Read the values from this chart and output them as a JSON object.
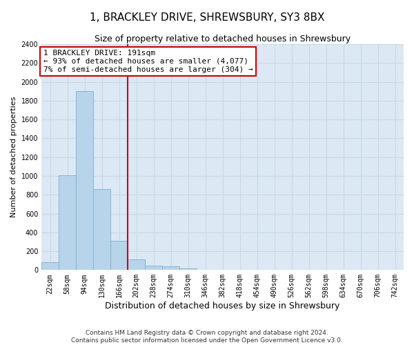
{
  "title": "1, BRACKLEY DRIVE, SHREWSBURY, SY3 8BX",
  "subtitle": "Size of property relative to detached houses in Shrewsbury",
  "xlabel": "Distribution of detached houses by size in Shrewsbury",
  "ylabel": "Number of detached properties",
  "footer_line1": "Contains HM Land Registry data © Crown copyright and database right 2024.",
  "footer_line2": "Contains public sector information licensed under the Open Government Licence v3.0.",
  "bar_labels": [
    "22sqm",
    "58sqm",
    "94sqm",
    "130sqm",
    "166sqm",
    "202sqm",
    "238sqm",
    "274sqm",
    "310sqm",
    "346sqm",
    "382sqm",
    "418sqm",
    "454sqm",
    "490sqm",
    "526sqm",
    "562sqm",
    "598sqm",
    "634sqm",
    "670sqm",
    "706sqm",
    "742sqm"
  ],
  "bar_values": [
    80,
    1010,
    1900,
    860,
    310,
    110,
    50,
    40,
    20,
    5,
    5,
    0,
    0,
    0,
    0,
    0,
    0,
    0,
    0,
    0,
    0
  ],
  "bar_color": "#b8d4ea",
  "bar_edge_color": "#7aafd4",
  "vline_color": "#cc0000",
  "ylim": [
    0,
    2400
  ],
  "yticks": [
    0,
    200,
    400,
    600,
    800,
    1000,
    1200,
    1400,
    1600,
    1800,
    2000,
    2200,
    2400
  ],
  "annotation_text": "1 BRACKLEY DRIVE: 191sqm\n← 93% of detached houses are smaller (4,077)\n7% of semi-detached houses are larger (304) →",
  "annotation_box_color": "#ffffff",
  "annotation_box_edge": "#cc0000",
  "grid_color": "#c8d8e8",
  "background_color": "#dce8f4",
  "title_fontsize": 11,
  "subtitle_fontsize": 9,
  "ylabel_fontsize": 8,
  "xlabel_fontsize": 9,
  "tick_fontsize": 7,
  "annot_fontsize": 8,
  "footer_fontsize": 6.5
}
